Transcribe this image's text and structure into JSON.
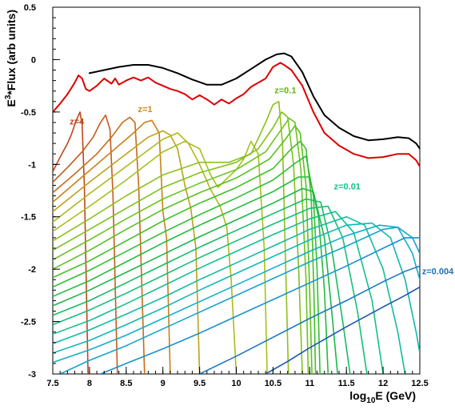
{
  "chart_data": {
    "type": "line",
    "title": "",
    "xlabel": "log",
    "xlabel_sub": "10",
    "xlabel_rest": "E (GeV)",
    "ylabel": "E",
    "ylabel_sup": "3",
    "ylabel_rest": "*Flux (arb units)",
    "xlim": [
      7.5,
      12.5
    ],
    "ylim": [
      -3,
      0.5
    ],
    "x_ticks": [
      7.5,
      8,
      8.5,
      9,
      9.5,
      10,
      10.5,
      11,
      11.5,
      12,
      12.5
    ],
    "x_tick_labels": [
      "7.5",
      "8",
      "8.5",
      "9",
      "9.5",
      "10",
      "10.5",
      "11",
      "11.5",
      "12",
      "12.5"
    ],
    "y_ticks": [
      -3,
      -2.5,
      -2,
      -1.5,
      -1,
      -0.5,
      0,
      0.5
    ],
    "y_tick_labels": [
      "-3",
      "-2.5",
      "-2",
      "-1.5",
      "-1",
      "-0.5",
      "0",
      "0.5"
    ],
    "grid": false,
    "legend": "none",
    "annotations": [
      {
        "text": "z=4",
        "x": 7.73,
        "y": -0.62,
        "color": "#c0461a"
      },
      {
        "text": "z=1",
        "x": 8.66,
        "y": -0.5,
        "color": "#d08a1a"
      },
      {
        "text": "z=0.1",
        "x": 10.52,
        "y": -0.32,
        "color": "#62b80e"
      },
      {
        "text": "z=0.01",
        "x": 11.33,
        "y": -1.24,
        "color": "#16c08a"
      },
      {
        "text": "z=0.004",
        "x": 12.53,
        "y": -2.05,
        "color": "#2070b8"
      }
    ],
    "series": [
      {
        "color": "#000000",
        "x": [
          8.0,
          8.2,
          8.4,
          8.6,
          8.8,
          9.0,
          9.2,
          9.4,
          9.6,
          9.8,
          10.0,
          10.2,
          10.4,
          10.55,
          10.65,
          10.75,
          10.9,
          11.05,
          11.2,
          11.4,
          11.6,
          11.8,
          12.0,
          12.2,
          12.35,
          12.45,
          12.5
        ],
        "y": [
          -0.13,
          -0.1,
          -0.07,
          -0.05,
          -0.05,
          -0.08,
          -0.13,
          -0.19,
          -0.24,
          -0.24,
          -0.18,
          -0.09,
          0.0,
          0.05,
          0.06,
          0.03,
          -0.12,
          -0.35,
          -0.53,
          -0.65,
          -0.73,
          -0.77,
          -0.76,
          -0.74,
          -0.75,
          -0.8,
          -0.85
        ]
      },
      {
        "color": "#e00000",
        "x": [
          7.5,
          7.6,
          7.7,
          7.8,
          7.85,
          7.9,
          7.95,
          8.0,
          8.1,
          8.2,
          8.3,
          8.35,
          8.4,
          8.5,
          8.6,
          8.7,
          8.8,
          8.9,
          9.0,
          9.1,
          9.2,
          9.3,
          9.4,
          9.5,
          9.6,
          9.7,
          9.8,
          9.9,
          10.0,
          10.1,
          10.2,
          10.3,
          10.4,
          10.5,
          10.6,
          10.65,
          10.75,
          10.9,
          11.05,
          11.2,
          11.4,
          11.6,
          11.8,
          12.0,
          12.2,
          12.35,
          12.45,
          12.5
        ],
        "y": [
          -0.5,
          -0.42,
          -0.33,
          -0.22,
          -0.15,
          -0.18,
          -0.28,
          -0.3,
          -0.25,
          -0.18,
          -0.23,
          -0.18,
          -0.24,
          -0.2,
          -0.17,
          -0.2,
          -0.17,
          -0.22,
          -0.25,
          -0.28,
          -0.3,
          -0.33,
          -0.38,
          -0.34,
          -0.38,
          -0.43,
          -0.38,
          -0.42,
          -0.37,
          -0.33,
          -0.26,
          -0.22,
          -0.18,
          -0.07,
          -0.03,
          -0.05,
          -0.1,
          -0.25,
          -0.5,
          -0.7,
          -0.82,
          -0.9,
          -0.94,
          -0.93,
          -0.9,
          -0.9,
          -0.96,
          -1.02
        ]
      },
      {
        "color": "#c0461a",
        "x": [
          7.5,
          7.6,
          7.7,
          7.75,
          7.82,
          7.87,
          7.9,
          7.93,
          7.98
        ],
        "y": [
          -1.07,
          -0.93,
          -0.8,
          -0.72,
          -0.58,
          -0.5,
          -0.62,
          -1.2,
          -3.0
        ]
      },
      {
        "color": "#c8591a",
        "x": [
          7.5,
          7.7,
          7.9,
          8.05,
          8.15,
          8.22,
          8.28,
          8.32,
          8.38
        ],
        "y": [
          -1.17,
          -1.03,
          -0.88,
          -0.74,
          -0.6,
          -0.53,
          -0.67,
          -1.3,
          -3.0
        ]
      },
      {
        "color": "#c56c18",
        "x": [
          7.5,
          7.8,
          8.1,
          8.3,
          8.45,
          8.55,
          8.62,
          8.67,
          8.75
        ],
        "y": [
          -1.27,
          -1.09,
          -0.9,
          -0.74,
          -0.6,
          -0.55,
          -0.6,
          -1.2,
          -3.0
        ]
      },
      {
        "color": "#c98118",
        "x": [
          7.5,
          7.9,
          8.3,
          8.6,
          8.75,
          8.85,
          8.95,
          9.0,
          9.05,
          9.1
        ],
        "y": [
          -1.36,
          -1.12,
          -0.88,
          -0.7,
          -0.6,
          -0.58,
          -0.7,
          -1.45,
          -1.7,
          -3.0
        ]
      },
      {
        "color": "#bea01a",
        "x": [
          7.5,
          8.0,
          8.5,
          8.8,
          9.0,
          9.1,
          9.2,
          9.3,
          9.38,
          9.45,
          9.5
        ],
        "y": [
          -1.45,
          -1.17,
          -0.9,
          -0.74,
          -0.68,
          -0.72,
          -0.85,
          -1.2,
          -1.42,
          -1.8,
          -3.0
        ]
      },
      {
        "color": "#b0b81a",
        "x": [
          7.5,
          8.0,
          8.5,
          9.0,
          9.2,
          9.35,
          9.5,
          9.65,
          9.78,
          9.87,
          9.93,
          10.0
        ],
        "y": [
          -1.55,
          -1.28,
          -1.02,
          -0.76,
          -0.7,
          -0.8,
          -1.0,
          -1.24,
          -1.4,
          -1.6,
          -2.1,
          -3.0
        ]
      },
      {
        "color": "#a6c01c",
        "x": [
          7.5,
          8.0,
          8.5,
          9.0,
          9.3,
          9.5,
          9.65,
          9.75,
          9.85,
          10.0,
          10.1,
          10.2,
          10.3,
          10.38,
          10.42
        ],
        "y": [
          -1.64,
          -1.4,
          -1.15,
          -0.88,
          -0.78,
          -0.85,
          -1.1,
          -1.22,
          -1.15,
          -1.05,
          -0.95,
          -0.78,
          -0.9,
          -1.8,
          -3.0
        ]
      },
      {
        "color": "#8ec01a",
        "x": [
          7.5,
          8.0,
          8.5,
          9.0,
          9.5,
          9.9,
          10.2,
          10.4,
          10.5,
          10.58,
          10.63,
          10.67,
          10.71
        ],
        "y": [
          -1.73,
          -1.52,
          -1.3,
          -1.1,
          -0.98,
          -0.98,
          -0.9,
          -0.6,
          -0.43,
          -0.4,
          -0.8,
          -1.9,
          -3.0
        ]
      },
      {
        "color": "#7ec21c",
        "x": [
          7.5,
          8.0,
          8.5,
          9.0,
          9.5,
          10.0,
          10.3,
          10.5,
          10.62,
          10.7,
          10.78,
          10.85,
          10.9
        ],
        "y": [
          -1.82,
          -1.62,
          -1.42,
          -1.22,
          -1.08,
          -0.98,
          -0.85,
          -0.65,
          -0.5,
          -0.55,
          -1.0,
          -2.0,
          -3.0
        ]
      },
      {
        "color": "#6cc41e",
        "x": [
          7.5,
          8.0,
          8.5,
          9.0,
          9.5,
          10.0,
          10.4,
          10.6,
          10.72,
          10.8,
          10.88,
          10.95,
          10.98
        ],
        "y": [
          -1.91,
          -1.72,
          -1.52,
          -1.33,
          -1.18,
          -1.05,
          -0.88,
          -0.68,
          -0.56,
          -0.6,
          -1.05,
          -2.1,
          -3.0
        ]
      },
      {
        "color": "#58c220",
        "x": [
          7.5,
          8.0,
          8.5,
          9.0,
          9.5,
          10.0,
          10.45,
          10.68,
          10.8,
          10.87,
          10.95,
          11.0,
          11.03
        ],
        "y": [
          -2.0,
          -1.82,
          -1.62,
          -1.43,
          -1.27,
          -1.13,
          -0.95,
          -0.75,
          -0.63,
          -0.7,
          -1.2,
          -2.2,
          -3.0
        ]
      },
      {
        "color": "#40c024",
        "x": [
          7.5,
          8.0,
          8.5,
          9.0,
          9.5,
          10.0,
          10.5,
          10.75,
          10.87,
          10.95,
          11.02,
          11.06,
          11.08
        ],
        "y": [
          -2.08,
          -1.92,
          -1.73,
          -1.54,
          -1.37,
          -1.22,
          -1.04,
          -0.85,
          -0.78,
          -0.85,
          -1.3,
          -2.3,
          -3.0
        ]
      },
      {
        "color": "#30c030",
        "x": [
          7.5,
          8.0,
          8.5,
          9.0,
          9.5,
          10.0,
          10.5,
          10.8,
          10.95,
          11.05,
          11.1,
          11.14
        ],
        "y": [
          -2.17,
          -2.01,
          -1.83,
          -1.65,
          -1.48,
          -1.32,
          -1.15,
          -0.99,
          -0.92,
          -1.3,
          -2.0,
          -3.0
        ]
      },
      {
        "color": "#22bc3c",
        "x": [
          7.5,
          8.0,
          8.5,
          9.0,
          9.5,
          10.0,
          10.5,
          10.85,
          11.0,
          11.12,
          11.2,
          11.25
        ],
        "y": [
          -2.26,
          -2.11,
          -1.93,
          -1.75,
          -1.58,
          -1.42,
          -1.26,
          -1.12,
          -1.12,
          -1.5,
          -2.2,
          -3.0
        ]
      },
      {
        "color": "#1ab84a",
        "x": [
          7.5,
          8.0,
          8.5,
          9.0,
          9.5,
          10.0,
          10.5,
          10.9,
          11.05,
          11.2,
          11.3,
          11.38
        ],
        "y": [
          -2.35,
          -2.2,
          -2.03,
          -1.86,
          -1.69,
          -1.53,
          -1.37,
          -1.23,
          -1.26,
          -1.7,
          -2.4,
          -3.0
        ]
      },
      {
        "color": "#16bc60",
        "x": [
          7.5,
          8.0,
          8.5,
          9.0,
          9.5,
          10.0,
          10.5,
          10.95,
          11.15,
          11.3,
          11.45,
          11.55
        ],
        "y": [
          -2.44,
          -2.3,
          -2.13,
          -1.96,
          -1.79,
          -1.63,
          -1.47,
          -1.33,
          -1.36,
          -1.8,
          -2.5,
          -3.0
        ]
      },
      {
        "color": "#14c07a",
        "x": [
          7.5,
          8.0,
          8.5,
          9.0,
          9.5,
          10.0,
          10.5,
          11.0,
          11.25,
          11.45,
          11.65,
          11.78
        ],
        "y": [
          -2.53,
          -2.39,
          -2.23,
          -2.06,
          -1.89,
          -1.73,
          -1.57,
          -1.42,
          -1.4,
          -1.7,
          -2.4,
          -3.0
        ]
      },
      {
        "color": "#12c08f",
        "x": [
          7.5,
          8.0,
          8.5,
          9.0,
          9.5,
          10.0,
          10.5,
          11.0,
          11.35,
          11.6,
          11.85,
          12.0
        ],
        "y": [
          -2.62,
          -2.49,
          -2.33,
          -2.16,
          -1.99,
          -1.83,
          -1.67,
          -1.52,
          -1.45,
          -1.65,
          -2.3,
          -3.0
        ]
      },
      {
        "color": "#10bca2",
        "x": [
          7.5,
          8.0,
          8.5,
          9.0,
          9.5,
          10.0,
          10.5,
          11.0,
          11.5,
          11.75,
          12.0,
          12.2,
          12.3
        ],
        "y": [
          -2.71,
          -2.58,
          -2.43,
          -2.27,
          -2.1,
          -1.94,
          -1.78,
          -1.62,
          -1.5,
          -1.58,
          -2.0,
          -2.6,
          -3.0
        ]
      },
      {
        "color": "#10b8b4",
        "x": [
          7.5,
          8.0,
          8.5,
          9.0,
          9.5,
          10.0,
          10.5,
          11.0,
          11.5,
          11.85,
          12.1,
          12.3,
          12.45,
          12.5
        ],
        "y": [
          -2.8,
          -2.68,
          -2.53,
          -2.37,
          -2.2,
          -2.04,
          -1.88,
          -1.72,
          -1.58,
          -1.56,
          -1.7,
          -2.1,
          -2.6,
          -2.8
        ]
      },
      {
        "color": "#12b0c8",
        "x": [
          7.5,
          8.0,
          8.5,
          9.0,
          9.5,
          10.0,
          10.5,
          11.0,
          11.5,
          11.95,
          12.2,
          12.4,
          12.5
        ],
        "y": [
          -2.89,
          -2.77,
          -2.63,
          -2.47,
          -2.31,
          -2.15,
          -1.99,
          -1.83,
          -1.68,
          -1.58,
          -1.6,
          -1.85,
          -2.1
        ]
      },
      {
        "color": "#14a4d0",
        "x": [
          7.6,
          8.0,
          8.5,
          9.0,
          9.5,
          10.0,
          10.5,
          11.0,
          11.5,
          12.0,
          12.2,
          12.4,
          12.5
        ],
        "y": [
          -3.0,
          -2.87,
          -2.73,
          -2.57,
          -2.41,
          -2.25,
          -2.09,
          -1.93,
          -1.78,
          -1.62,
          -1.6,
          -1.7,
          -1.85
        ]
      },
      {
        "color": "#1890d0",
        "x": [
          8.15,
          8.5,
          9.0,
          9.5,
          10.0,
          10.5,
          11.0,
          11.5,
          12.0,
          12.3,
          12.5
        ],
        "y": [
          -3.0,
          -2.9,
          -2.76,
          -2.61,
          -2.45,
          -2.29,
          -2.13,
          -1.97,
          -1.8,
          -1.7,
          -1.7
        ]
      },
      {
        "color": "#1a76c4",
        "x": [
          9.5,
          10.0,
          10.5,
          11.0,
          11.5,
          12.0,
          12.3,
          12.5
        ],
        "y": [
          -3.0,
          -2.83,
          -2.65,
          -2.47,
          -2.3,
          -2.12,
          -2.02,
          -1.97
        ]
      },
      {
        "color": "#1a56b4",
        "x": [
          10.4,
          10.7,
          11.0,
          11.5,
          12.0,
          12.3,
          12.5
        ],
        "y": [
          -3.0,
          -2.88,
          -2.75,
          -2.55,
          -2.36,
          -2.25,
          -2.17
        ]
      }
    ]
  }
}
